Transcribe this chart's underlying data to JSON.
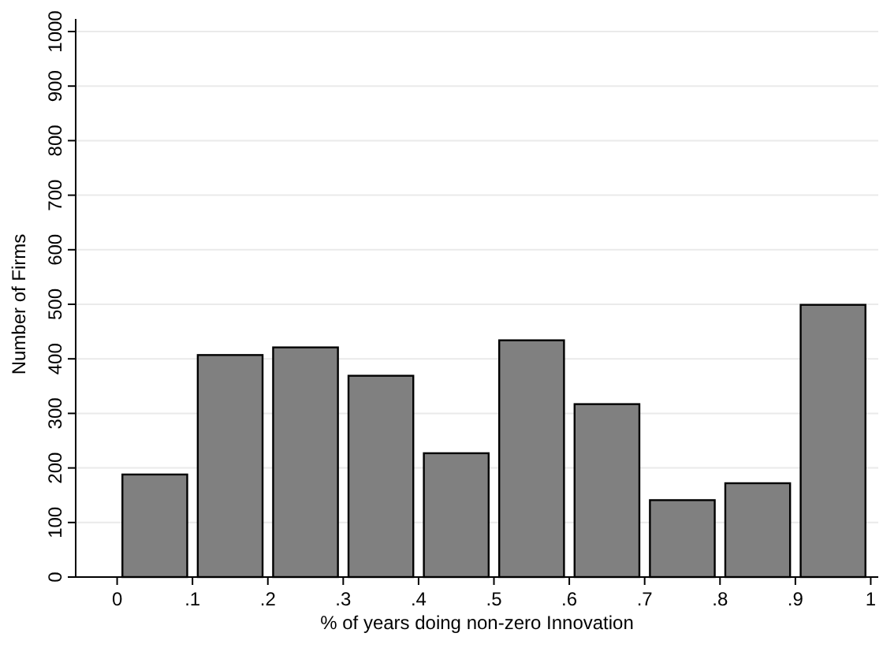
{
  "chart_data": {
    "type": "histogram",
    "xlabel": "% of years doing non-zero Innovation",
    "ylabel": "Number of Firms",
    "bins": [
      0,
      0.1,
      0.2,
      0.3,
      0.4,
      0.5,
      0.6,
      0.7,
      0.8,
      0.9,
      1
    ],
    "values": [
      188,
      407,
      421,
      369,
      227,
      434,
      317,
      141,
      172,
      499
    ],
    "color": "#808080",
    "xlim": [
      -0.055,
      1.01
    ],
    "ylim": [
      0,
      1000
    ],
    "xticks": [
      {
        "value": 0,
        "label": "0"
      },
      {
        "value": 0.1,
        "label": ".1"
      },
      {
        "value": 0.2,
        "label": ".2"
      },
      {
        "value": 0.3,
        "label": ".3"
      },
      {
        "value": 0.4,
        "label": ".4"
      },
      {
        "value": 0.5,
        "label": ".5"
      },
      {
        "value": 0.6,
        "label": ".6"
      },
      {
        "value": 0.7,
        "label": ".7"
      },
      {
        "value": 0.8,
        "label": ".8"
      },
      {
        "value": 0.9,
        "label": ".9"
      },
      {
        "value": 1,
        "label": "1"
      }
    ],
    "yticks": [
      0,
      100,
      200,
      300,
      400,
      500,
      600,
      700,
      800,
      900,
      1000
    ],
    "grid": "y"
  }
}
